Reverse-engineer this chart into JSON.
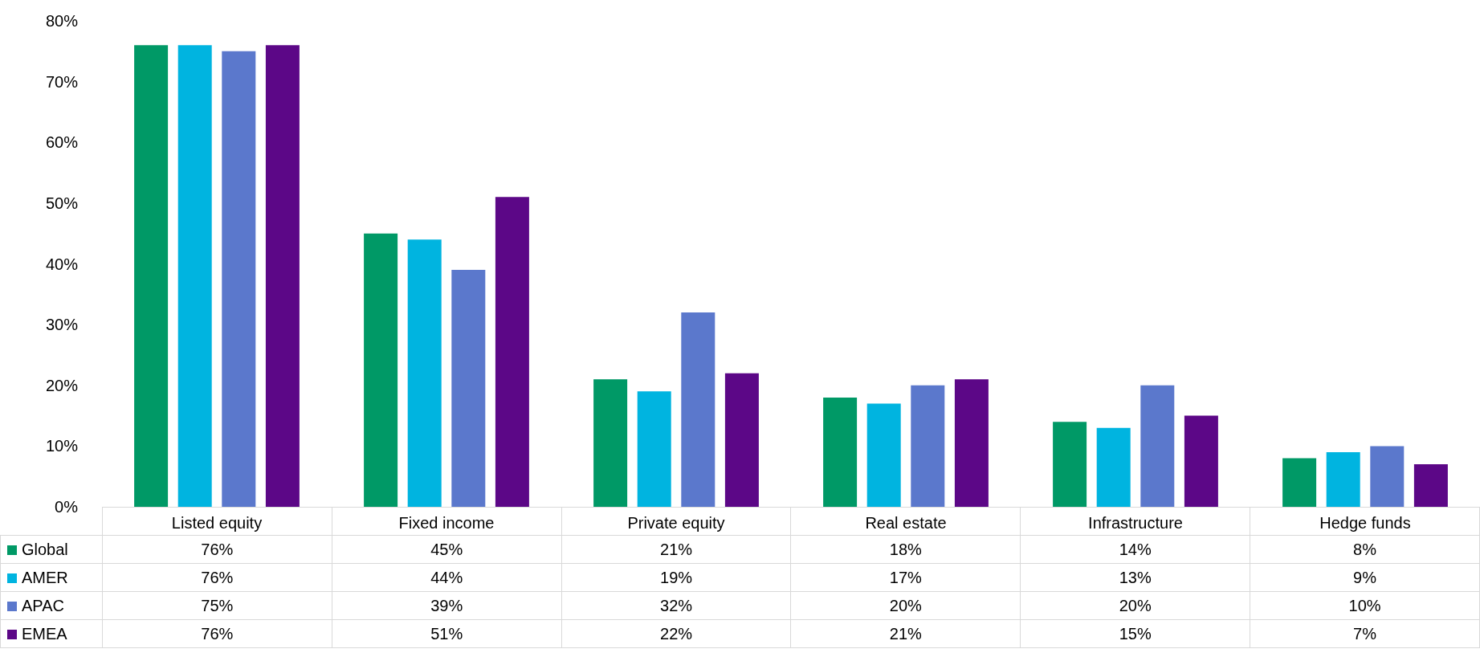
{
  "chart_data": {
    "type": "bar",
    "categories": [
      "Listed equity",
      "Fixed income",
      "Private equity",
      "Real estate",
      "Infrastructure",
      "Hedge funds"
    ],
    "series": [
      {
        "name": "Global",
        "color": "#009966",
        "values": [
          76,
          45,
          21,
          18,
          14,
          8
        ],
        "value_labels": [
          "76%",
          "45%",
          "21%",
          "18%",
          "14%",
          "8%"
        ]
      },
      {
        "name": "AMER",
        "color": "#00b4e0",
        "values": [
          76,
          44,
          19,
          17,
          13,
          9
        ],
        "value_labels": [
          "76%",
          "44%",
          "19%",
          "17%",
          "13%",
          "9%"
        ]
      },
      {
        "name": "APAC",
        "color": "#5b78cc",
        "values": [
          75,
          39,
          32,
          20,
          20,
          10
        ],
        "value_labels": [
          "75%",
          "39%",
          "32%",
          "20%",
          "20%",
          "10%"
        ]
      },
      {
        "name": "EMEA",
        "color": "#5c0787",
        "values": [
          76,
          51,
          22,
          21,
          15,
          7
        ],
        "value_labels": [
          "76%",
          "51%",
          "22%",
          "21%",
          "15%",
          "7%"
        ]
      }
    ],
    "ylim": [
      0,
      80
    ],
    "yticks": [
      {
        "value": 0,
        "label": "0%"
      },
      {
        "value": 10,
        "label": "10%"
      },
      {
        "value": 20,
        "label": "20%"
      },
      {
        "value": 30,
        "label": "30%"
      },
      {
        "value": 40,
        "label": "40%"
      },
      {
        "value": 50,
        "label": "50%"
      },
      {
        "value": 60,
        "label": "60%"
      },
      {
        "value": 70,
        "label": "70%"
      },
      {
        "value": 80,
        "label": "80%"
      }
    ],
    "grid": false,
    "legend": "bottom left"
  }
}
